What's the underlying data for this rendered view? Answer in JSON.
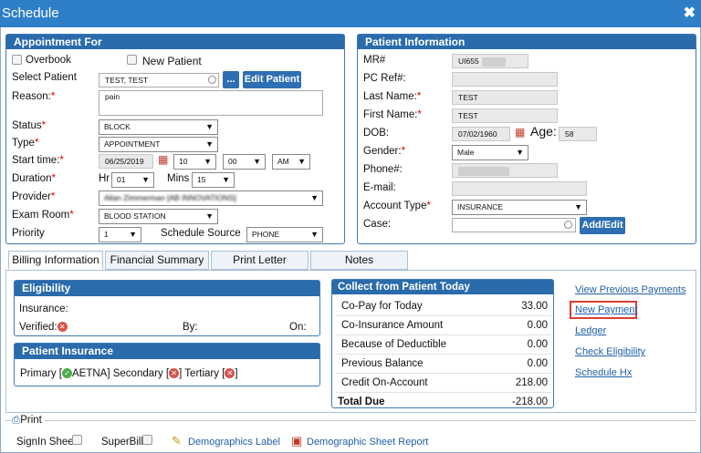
{
  "window": {
    "title": "Schedule",
    "close": "✖"
  },
  "appointment": {
    "header": "Appointment For",
    "overbook_label": "Overbook",
    "new_patient_label": "New Patient",
    "select_patient_label": "Select Patient",
    "patient_value": "TEST, TEST",
    "ellipsis_btn": "...",
    "edit_patient_btn": "Edit Patient",
    "reason_label": "Reason:",
    "reason_value": "pain",
    "status_label": "Status",
    "status_value": "BLOCK",
    "type_label": "Type",
    "type_value": "APPOINTMENT",
    "start_label": "Start time:",
    "start_date": "06/25/2019",
    "start_hour": "10",
    "start_min": "00",
    "start_ampm": "AM",
    "duration_label": "Duration",
    "hr_label": "Hr",
    "hr_value": "01",
    "mins_label": "Mins",
    "mins_value": "15",
    "provider_label": "Provider",
    "provider_value": "Allan Zimmerman [AB INNOVATIONS]",
    "exam_label": "Exam Room",
    "exam_value": "BLOOD STATION",
    "priority_label": "Priority",
    "priority_value": "1",
    "source_label": "Schedule Source",
    "source_value": "PHONE"
  },
  "patient_info": {
    "header": "Patient Information",
    "mr_label": "MR#",
    "mr_value": "UI655",
    "pcref_label": "PC Ref#:",
    "last_label": "Last Name:",
    "last_value": "TEST",
    "first_label": "First Name:",
    "first_value": "TEST",
    "dob_label": "DOB:",
    "dob_value": "07/02/1960",
    "age_label": "Age:",
    "age_value": "58",
    "gender_label": "Gender:",
    "gender_value": "Male",
    "phone_label": "Phone#:",
    "email_label": "E-mail:",
    "account_label": "Account Type",
    "account_value": "INSURANCE",
    "case_label": "Case:",
    "addedit_btn": "Add/Edit"
  },
  "tabs": [
    "Billing Information",
    "Financial Summary",
    "Print Letter",
    "Notes"
  ],
  "eligibility": {
    "header": "Eligibility",
    "insurance_label": "Insurance:",
    "verified_label": "Verified:",
    "by_label": "By:",
    "on_label": "On:"
  },
  "patient_insurance": {
    "header": "Patient Insurance",
    "primary_label": "Primary [",
    "primary_value": "AETNA] Secondary [",
    "tertiary_label": "] Tertiary [",
    "end": "]"
  },
  "collect": {
    "header": "Collect from Patient Today",
    "rows": [
      {
        "label": "Co-Pay for Today",
        "value": "33.00"
      },
      {
        "label": "Co-Insurance Amount",
        "value": "0.00"
      },
      {
        "label": "Because of Deductible",
        "value": "0.00"
      },
      {
        "label": "Previous Balance",
        "value": "0.00"
      },
      {
        "label": "Credit On-Account",
        "value": "218.00"
      }
    ],
    "total_label": "Total Due",
    "total_value": "-218.00"
  },
  "links": {
    "view_prev": "View Previous Payments",
    "new_payment": "New Payment",
    "ledger": "Ledger",
    "check_elig": "Check Eligibility",
    "schedule_hx": "Schedule Hx"
  },
  "print": {
    "legend": "Print",
    "signin": "SignIn Sheet",
    "superbill": "SuperBill",
    "demo_label": "Demographics Label",
    "demo_report": "Demographic Sheet Report"
  },
  "colors": {
    "header": "#2a6bab",
    "titlebar": "#2f7fc8",
    "highlight": "#e03c31"
  }
}
